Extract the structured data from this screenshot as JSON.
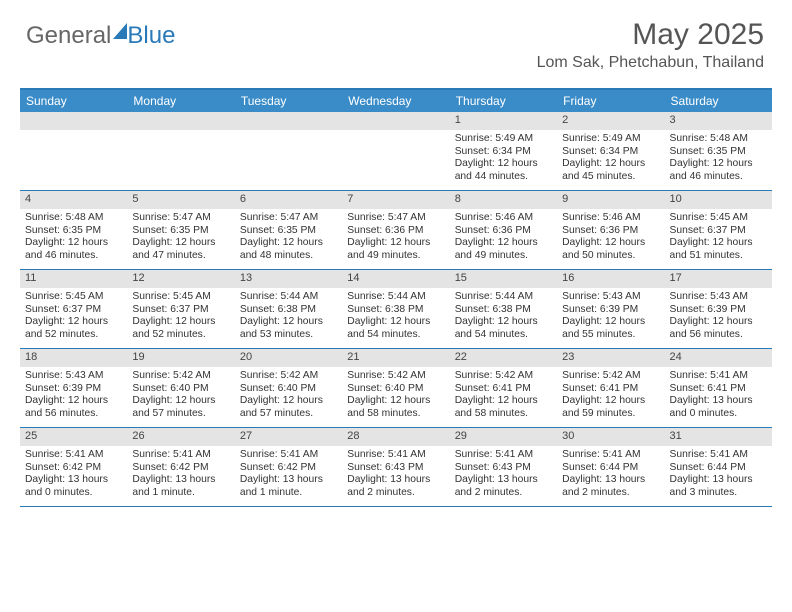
{
  "logo": {
    "text1": "General",
    "text2": "Blue"
  },
  "title": "May 2025",
  "location": "Lom Sak, Phetchabun, Thailand",
  "colors": {
    "header_bg": "#3a8cc8",
    "border": "#2a7ab8",
    "daynum_bg": "#e4e4e4",
    "text": "#333333"
  },
  "day_names": [
    "Sunday",
    "Monday",
    "Tuesday",
    "Wednesday",
    "Thursday",
    "Friday",
    "Saturday"
  ],
  "weeks": [
    [
      {
        "n": "",
        "sr": "",
        "ss": "",
        "dl": ""
      },
      {
        "n": "",
        "sr": "",
        "ss": "",
        "dl": ""
      },
      {
        "n": "",
        "sr": "",
        "ss": "",
        "dl": ""
      },
      {
        "n": "",
        "sr": "",
        "ss": "",
        "dl": ""
      },
      {
        "n": "1",
        "sr": "5:49 AM",
        "ss": "6:34 PM",
        "dl": "12 hours and 44 minutes."
      },
      {
        "n": "2",
        "sr": "5:49 AM",
        "ss": "6:34 PM",
        "dl": "12 hours and 45 minutes."
      },
      {
        "n": "3",
        "sr": "5:48 AM",
        "ss": "6:35 PM",
        "dl": "12 hours and 46 minutes."
      }
    ],
    [
      {
        "n": "4",
        "sr": "5:48 AM",
        "ss": "6:35 PM",
        "dl": "12 hours and 46 minutes."
      },
      {
        "n": "5",
        "sr": "5:47 AM",
        "ss": "6:35 PM",
        "dl": "12 hours and 47 minutes."
      },
      {
        "n": "6",
        "sr": "5:47 AM",
        "ss": "6:35 PM",
        "dl": "12 hours and 48 minutes."
      },
      {
        "n": "7",
        "sr": "5:47 AM",
        "ss": "6:36 PM",
        "dl": "12 hours and 49 minutes."
      },
      {
        "n": "8",
        "sr": "5:46 AM",
        "ss": "6:36 PM",
        "dl": "12 hours and 49 minutes."
      },
      {
        "n": "9",
        "sr": "5:46 AM",
        "ss": "6:36 PM",
        "dl": "12 hours and 50 minutes."
      },
      {
        "n": "10",
        "sr": "5:45 AM",
        "ss": "6:37 PM",
        "dl": "12 hours and 51 minutes."
      }
    ],
    [
      {
        "n": "11",
        "sr": "5:45 AM",
        "ss": "6:37 PM",
        "dl": "12 hours and 52 minutes."
      },
      {
        "n": "12",
        "sr": "5:45 AM",
        "ss": "6:37 PM",
        "dl": "12 hours and 52 minutes."
      },
      {
        "n": "13",
        "sr": "5:44 AM",
        "ss": "6:38 PM",
        "dl": "12 hours and 53 minutes."
      },
      {
        "n": "14",
        "sr": "5:44 AM",
        "ss": "6:38 PM",
        "dl": "12 hours and 54 minutes."
      },
      {
        "n": "15",
        "sr": "5:44 AM",
        "ss": "6:38 PM",
        "dl": "12 hours and 54 minutes."
      },
      {
        "n": "16",
        "sr": "5:43 AM",
        "ss": "6:39 PM",
        "dl": "12 hours and 55 minutes."
      },
      {
        "n": "17",
        "sr": "5:43 AM",
        "ss": "6:39 PM",
        "dl": "12 hours and 56 minutes."
      }
    ],
    [
      {
        "n": "18",
        "sr": "5:43 AM",
        "ss": "6:39 PM",
        "dl": "12 hours and 56 minutes."
      },
      {
        "n": "19",
        "sr": "5:42 AM",
        "ss": "6:40 PM",
        "dl": "12 hours and 57 minutes."
      },
      {
        "n": "20",
        "sr": "5:42 AM",
        "ss": "6:40 PM",
        "dl": "12 hours and 57 minutes."
      },
      {
        "n": "21",
        "sr": "5:42 AM",
        "ss": "6:40 PM",
        "dl": "12 hours and 58 minutes."
      },
      {
        "n": "22",
        "sr": "5:42 AM",
        "ss": "6:41 PM",
        "dl": "12 hours and 58 minutes."
      },
      {
        "n": "23",
        "sr": "5:42 AM",
        "ss": "6:41 PM",
        "dl": "12 hours and 59 minutes."
      },
      {
        "n": "24",
        "sr": "5:41 AM",
        "ss": "6:41 PM",
        "dl": "13 hours and 0 minutes."
      }
    ],
    [
      {
        "n": "25",
        "sr": "5:41 AM",
        "ss": "6:42 PM",
        "dl": "13 hours and 0 minutes."
      },
      {
        "n": "26",
        "sr": "5:41 AM",
        "ss": "6:42 PM",
        "dl": "13 hours and 1 minute."
      },
      {
        "n": "27",
        "sr": "5:41 AM",
        "ss": "6:42 PM",
        "dl": "13 hours and 1 minute."
      },
      {
        "n": "28",
        "sr": "5:41 AM",
        "ss": "6:43 PM",
        "dl": "13 hours and 2 minutes."
      },
      {
        "n": "29",
        "sr": "5:41 AM",
        "ss": "6:43 PM",
        "dl": "13 hours and 2 minutes."
      },
      {
        "n": "30",
        "sr": "5:41 AM",
        "ss": "6:44 PM",
        "dl": "13 hours and 2 minutes."
      },
      {
        "n": "31",
        "sr": "5:41 AM",
        "ss": "6:44 PM",
        "dl": "13 hours and 3 minutes."
      }
    ]
  ],
  "labels": {
    "sunrise": "Sunrise:",
    "sunset": "Sunset:",
    "daylight": "Daylight:"
  }
}
